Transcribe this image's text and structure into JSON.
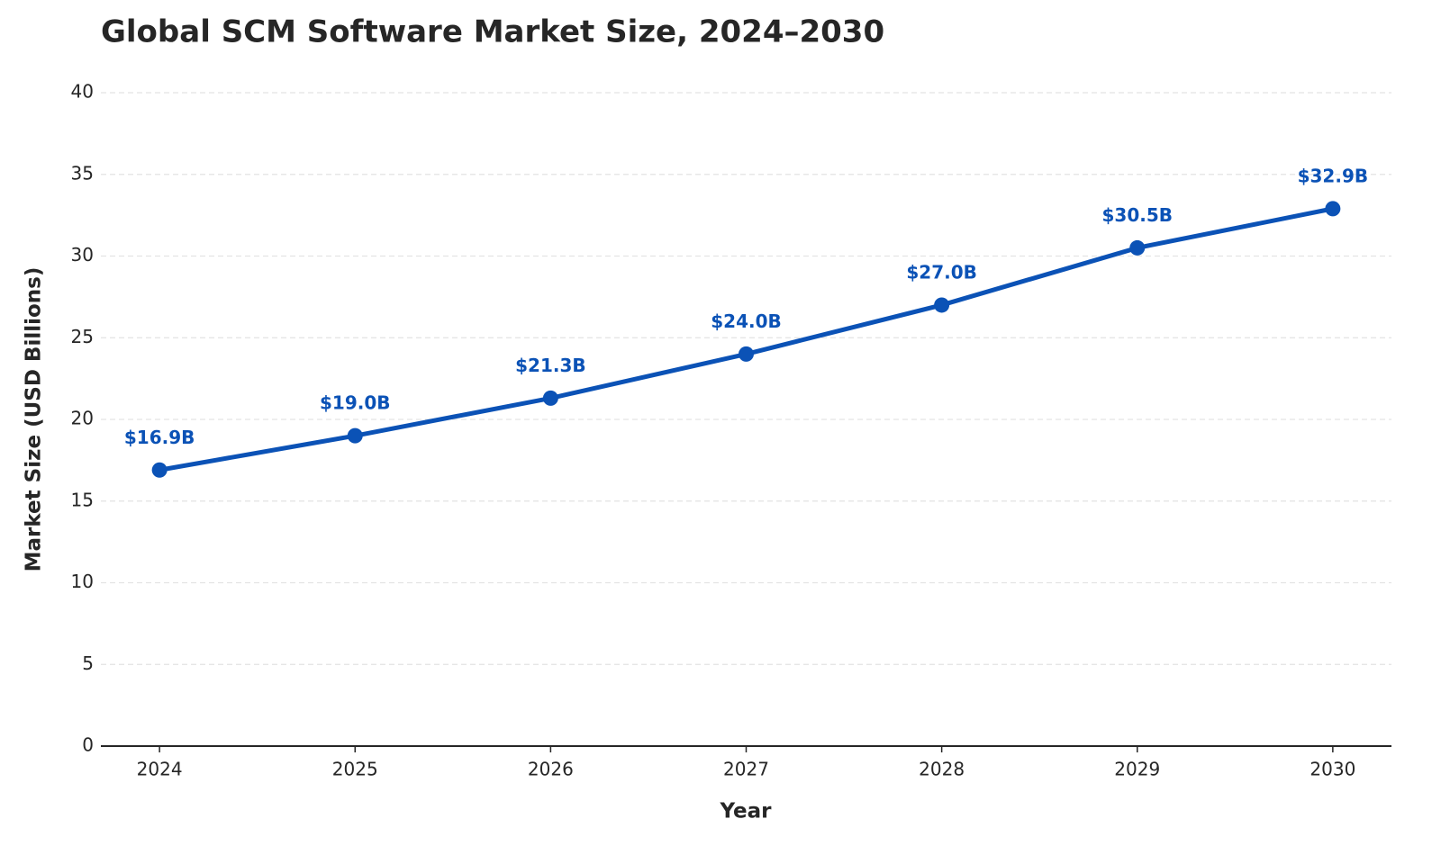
{
  "chart_data": {
    "type": "line",
    "title": "Global SCM Software Market Size, 2024–2030",
    "x_label": "Year",
    "y_label": "Market Size (USD Billions)",
    "x": [
      2024,
      2025,
      2026,
      2027,
      2028,
      2029,
      2030
    ],
    "xlim": [
      2023.7,
      2030.3
    ],
    "xticks": [
      2024,
      2025,
      2026,
      2027,
      2028,
      2029,
      2030
    ],
    "ylim": [
      0,
      40
    ],
    "yticks": [
      0,
      5,
      10,
      15,
      20,
      25,
      30,
      35,
      40
    ],
    "grid": true,
    "series": [
      {
        "name": "Market Size",
        "color": "#0b52b6",
        "values": [
          16.9,
          19.0,
          21.3,
          24.0,
          27.0,
          30.5,
          32.9
        ],
        "value_labels": [
          "$16.9B",
          "$19.0B",
          "$21.3B",
          "$24.0B",
          "$27.0B",
          "$30.5B",
          "$32.9B"
        ]
      }
    ]
  }
}
